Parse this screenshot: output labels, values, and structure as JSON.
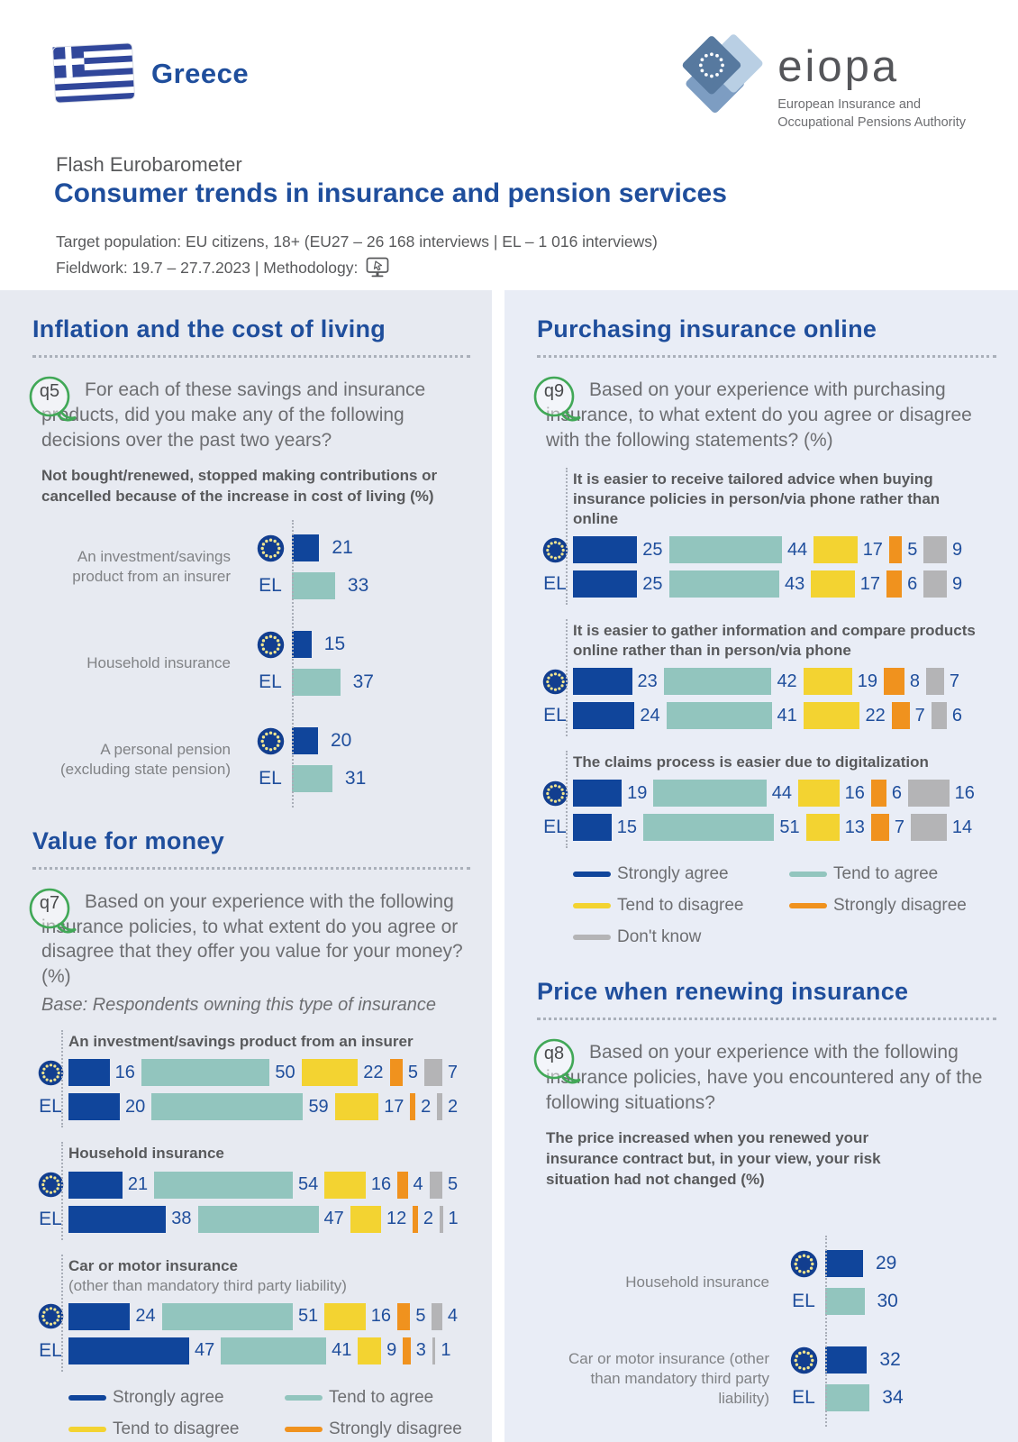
{
  "header": {
    "country": "Greece",
    "kicker": "Flash Eurobarometer",
    "title": "Consumer trends in insurance and pension services",
    "target_population": "Target population: EU citizens, 18+ (EU27 – 26 168 interviews | EL – 1 016 interviews)",
    "fieldwork": "Fieldwork: 19.7 – 27.7.2023 | Methodology:",
    "logo": {
      "wordmark": "eiopa",
      "subtitle_line1": "European Insurance and",
      "subtitle_line2": "Occupational Pensions Authority"
    }
  },
  "colors": {
    "heading": "#1F4E9C",
    "bubble_green": "#41A857",
    "strongly_agree": "#10459B",
    "tend_agree": "#92C5BE",
    "tend_disagree": "#F3D331",
    "strongly_disagree": "#F0921E",
    "dont_know": "#B4B4B6",
    "eu_bar": "#10459B",
    "el_bar": "#92C5BE"
  },
  "legend": [
    {
      "key": "strongly_agree",
      "label": "Strongly agree"
    },
    {
      "key": "tend_agree",
      "label": "Tend to agree"
    },
    {
      "key": "tend_disagree",
      "label": "Tend to disagree"
    },
    {
      "key": "strongly_disagree",
      "label": "Strongly disagree"
    },
    {
      "key": "dont_know",
      "label": "Don't know"
    }
  ],
  "sections": {
    "inflation": {
      "heading": "Inflation and the cost of living",
      "question_id": "q5",
      "question": "For each of these savings and insurance products, did you make any of the following decisions over the past two years?",
      "subtitle": "Not bought/renewed, stopped making contributions or cancelled because of the increase in cost of living (%)"
    },
    "value_for_money": {
      "heading": "Value for money",
      "question_id": "q7",
      "question": "Based on your experience with the following insurance policies, to what extent do you agree or disagree that they offer you value for your money? (%)",
      "base_note": "Base: Respondents owning this type of insurance"
    },
    "purchasing_online": {
      "heading": "Purchasing insurance online",
      "question_id": "q9",
      "question": "Based on your experience with purchasing insurance, to what extent do you agree or disagree with the following statements? (%)"
    },
    "price_renewing": {
      "heading": "Price when renewing insurance",
      "question_id": "q8",
      "question": "Based on your experience with the following insurance policies, have you encountered any of the following situations?",
      "subtitle": "The price increased when you renewed your insurance contract but, in your view, your risk situation had not changed (%)"
    }
  },
  "chart_data": [
    {
      "id": "q5",
      "type": "bar",
      "orientation": "horizontal",
      "title": "Not bought/renewed, stopped making contributions or cancelled because of the increase in cost of living (%)",
      "unit": "%",
      "xlim": [
        0,
        100
      ],
      "categories": [
        "An investment/savings product from an insurer",
        "Household insurance",
        "A personal pension (excluding state pension)"
      ],
      "series": [
        {
          "name": "EU27",
          "icon": "eu-flag",
          "values": [
            21,
            15,
            20
          ]
        },
        {
          "name": "EL",
          "values": [
            33,
            37,
            31
          ]
        }
      ]
    },
    {
      "id": "q7",
      "type": "stacked-bar",
      "orientation": "horizontal",
      "title": "Value for money (%)",
      "unit": "%",
      "xlim": [
        0,
        100
      ],
      "response_scale": [
        "Strongly agree",
        "Tend to agree",
        "Tend to disagree",
        "Strongly disagree",
        "Don't know"
      ],
      "groups": [
        {
          "category": "An investment/savings product from an insurer",
          "category_note": "",
          "rows": [
            {
              "name": "EU27",
              "icon": "eu-flag",
              "values": [
                16,
                50,
                22,
                5,
                7
              ]
            },
            {
              "name": "EL",
              "values": [
                20,
                59,
                17,
                2,
                2
              ]
            }
          ]
        },
        {
          "category": "Household insurance",
          "category_note": "",
          "rows": [
            {
              "name": "EU27",
              "icon": "eu-flag",
              "values": [
                21,
                54,
                16,
                4,
                5
              ]
            },
            {
              "name": "EL",
              "values": [
                38,
                47,
                12,
                2,
                1
              ]
            }
          ]
        },
        {
          "category": "Car or motor insurance",
          "category_note": "(other than mandatory third party liability)",
          "rows": [
            {
              "name": "EU27",
              "icon": "eu-flag",
              "values": [
                24,
                51,
                16,
                5,
                4
              ]
            },
            {
              "name": "EL",
              "values": [
                47,
                41,
                9,
                3,
                1
              ]
            }
          ]
        }
      ]
    },
    {
      "id": "q9",
      "type": "stacked-bar",
      "orientation": "horizontal",
      "title": "Purchasing insurance online (%)",
      "unit": "%",
      "xlim": [
        0,
        100
      ],
      "response_scale": [
        "Strongly agree",
        "Tend to agree",
        "Tend to disagree",
        "Strongly disagree",
        "Don't know"
      ],
      "groups": [
        {
          "category": "It is easier to receive tailored advice when buying insurance policies in person/via phone rather than online",
          "category_note": "",
          "rows": [
            {
              "name": "EU27",
              "icon": "eu-flag",
              "values": [
                25,
                44,
                17,
                5,
                9
              ]
            },
            {
              "name": "EL",
              "values": [
                25,
                43,
                17,
                6,
                9
              ]
            }
          ]
        },
        {
          "category": "It is easier to gather information and compare products online rather than in person/via phone",
          "category_note": "",
          "rows": [
            {
              "name": "EU27",
              "icon": "eu-flag",
              "values": [
                23,
                42,
                19,
                8,
                7
              ]
            },
            {
              "name": "EL",
              "values": [
                24,
                41,
                22,
                7,
                6
              ]
            }
          ]
        },
        {
          "category": "The claims process is easier due to digitalization",
          "category_note": "",
          "rows": [
            {
              "name": "EU27",
              "icon": "eu-flag",
              "values": [
                19,
                44,
                16,
                6,
                16
              ]
            },
            {
              "name": "EL",
              "values": [
                15,
                51,
                13,
                7,
                14
              ]
            }
          ]
        }
      ]
    },
    {
      "id": "q8",
      "type": "bar",
      "orientation": "horizontal",
      "title": "The price increased when you renewed your insurance contract but, in your view, your risk situation had not changed (%)",
      "unit": "%",
      "xlim": [
        0,
        100
      ],
      "categories": [
        "Household insurance",
        "Car or motor insurance (other than mandatory third party liability)"
      ],
      "series": [
        {
          "name": "EU27",
          "icon": "eu-flag",
          "values": [
            29,
            32
          ]
        },
        {
          "name": "EL",
          "values": [
            30,
            34
          ]
        }
      ]
    }
  ]
}
